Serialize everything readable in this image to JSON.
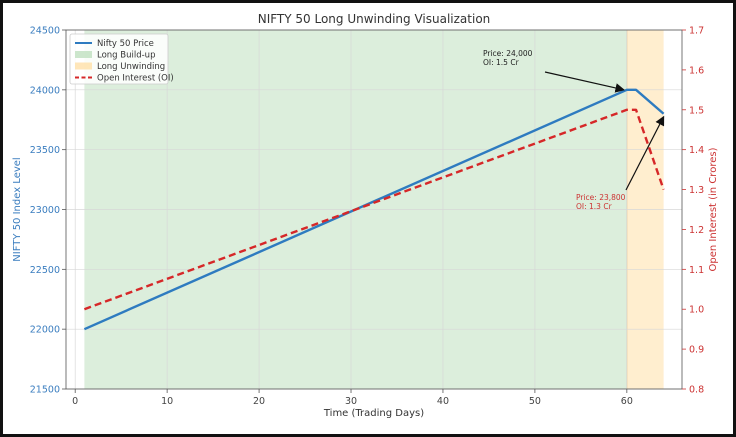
{
  "chart_data": {
    "type": "line",
    "title": "NIFTY 50 Long Unwinding Visualization",
    "xlabel": "Time (Trading Days)",
    "ylabel": "NIFTY 50 Index Level",
    "y2label": "Open Interest (in Crores)",
    "xlim": [
      -1,
      66
    ],
    "ylim": [
      21500,
      24500
    ],
    "y2lim": [
      0.8,
      1.7
    ],
    "x_ticks": [
      0,
      10,
      20,
      30,
      40,
      50,
      60
    ],
    "y_ticks": [
      21500,
      22000,
      22500,
      23000,
      23500,
      24000,
      24500
    ],
    "y2_ticks": [
      0.8,
      0.9,
      1.0,
      1.1,
      1.2,
      1.3,
      1.4,
      1.5,
      1.6,
      1.7
    ],
    "y2_tick_labels": [
      "0.8",
      "0.9",
      "1.0",
      "1.1",
      "1.2",
      "1.3",
      "1.4",
      "1.5",
      "1.6",
      "1.7"
    ],
    "grid": true,
    "legend_position": "top-left",
    "series": [
      {
        "name": "Nifty 50 Price",
        "axis": "left",
        "style": "solid",
        "color": "#2e7bc0",
        "x": [
          1,
          60,
          61,
          64
        ],
        "values": [
          22000,
          24000,
          24000,
          23800
        ]
      },
      {
        "name": "Open Interest (OI)",
        "axis": "right",
        "style": "dashed",
        "color": "#d62728",
        "x": [
          1,
          60,
          61,
          64
        ],
        "values": [
          1.0,
          1.5,
          1.5,
          1.3
        ]
      }
    ],
    "regions": [
      {
        "name": "Long Build-up",
        "x_start": 1,
        "x_end": 60,
        "color": "#bfe0bf"
      },
      {
        "name": "Long Unwinding",
        "x_start": 60,
        "x_end": 64,
        "color": "#ffe0a8"
      }
    ],
    "annotations": [
      {
        "lines": [
          "Price: 24,000",
          "OI: 1.5 Cr"
        ],
        "color": "#222222",
        "point_x": 60,
        "point_y": 24000
      },
      {
        "lines": [
          "Price: 23,800",
          "OI: 1.3 Cr"
        ],
        "color": "#cc3333",
        "point_x": 64,
        "point_y": 23800
      }
    ],
    "legend_order": [
      "Nifty 50 Price",
      "Long Build-up",
      "Long Unwinding",
      "Open Interest (OI)"
    ]
  }
}
